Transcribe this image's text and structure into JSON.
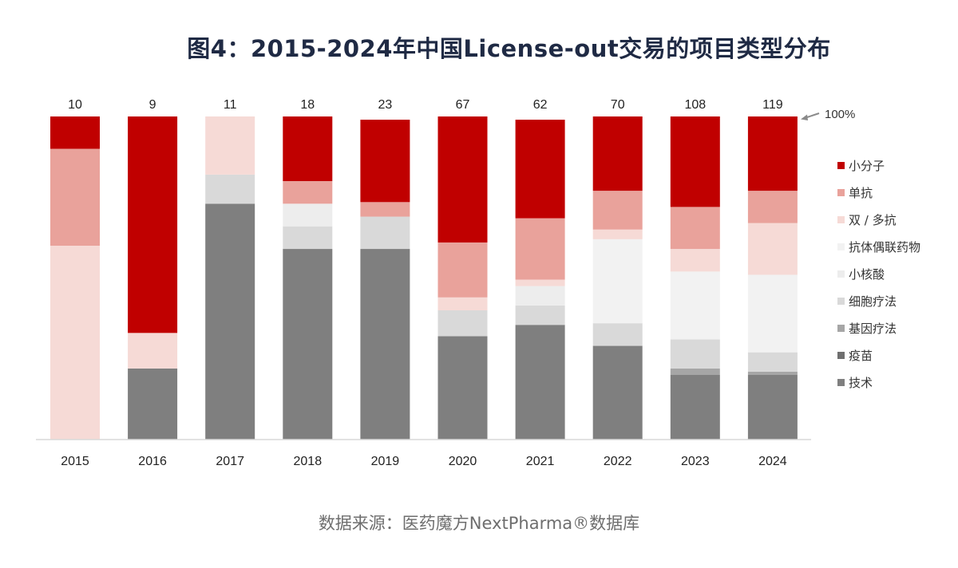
{
  "title": "图4：2015-2024年中国License-out交易的项目类型分布",
  "source": "数据来源：医药魔方NextPharma®数据库",
  "chart_data": {
    "type": "bar",
    "stacked": true,
    "normalized": true,
    "categories": [
      "2015",
      "2016",
      "2017",
      "2018",
      "2019",
      "2020",
      "2021",
      "2022",
      "2023",
      "2024"
    ],
    "totals": [
      "10",
      "9",
      "11",
      "18",
      "23",
      "67",
      "62",
      "70",
      "108",
      "119"
    ],
    "top_marker": "100%",
    "ylim": [
      0,
      1
    ],
    "grid": false,
    "legend_position": "right",
    "series": [
      {
        "name": "技术",
        "color": "#7f7f7f",
        "values": [
          0,
          0.22,
          0.73,
          0.59,
          0.59,
          0.32,
          0.355,
          0.29,
          0.2,
          0.2
        ]
      },
      {
        "name": "疫苗",
        "color": "#6f6f6f",
        "values": [
          0,
          0,
          0,
          0,
          0,
          0,
          0,
          0,
          0,
          0
        ]
      },
      {
        "name": "基因疗法",
        "color": "#a6a6a6",
        "values": [
          0,
          0,
          0,
          0,
          0,
          0,
          0,
          0,
          0.02,
          0.01
        ]
      },
      {
        "name": "细胞疗法",
        "color": "#d9d9d9",
        "values": [
          0,
          0,
          0.09,
          0.07,
          0.1,
          0.08,
          0.06,
          0.07,
          0.09,
          0.06
        ]
      },
      {
        "name": "小核酸",
        "color": "#ededed",
        "values": [
          0,
          0,
          0,
          0.07,
          0,
          0,
          0.06,
          0,
          0,
          0
        ]
      },
      {
        "name": "抗体偶联药物",
        "color": "#f2f2f2",
        "values": [
          0,
          0,
          0,
          0,
          0,
          0,
          0,
          0.26,
          0.21,
          0.24
        ]
      },
      {
        "name": "双 / 多抗",
        "color": "#f6dad6",
        "values": [
          0.6,
          0.11,
          0.18,
          0,
          0,
          0.04,
          0.02,
          0.03,
          0.07,
          0.16
        ]
      },
      {
        "name": "单抗",
        "color": "#e9a29b",
        "values": [
          0.3,
          0,
          0,
          0.07,
          0.045,
          0.17,
          0.19,
          0.12,
          0.13,
          0.1
        ]
      },
      {
        "name": "小分子",
        "color": "#c00000",
        "values": [
          0.1,
          0.67,
          0,
          0.2,
          0.255,
          0.39,
          0.305,
          0.23,
          0.28,
          0.23
        ]
      }
    ]
  }
}
